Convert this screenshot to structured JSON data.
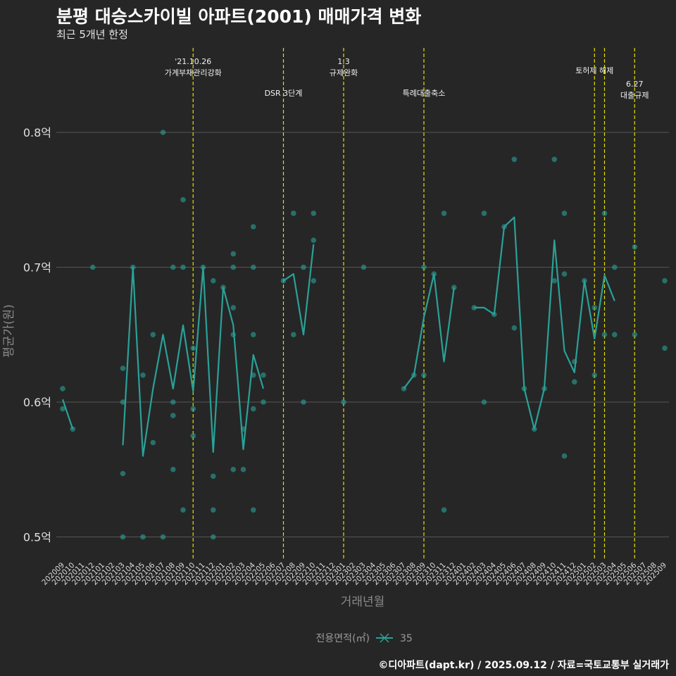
{
  "header": {
    "title": "분평 대승스카이빌 아파트(2001) 매매가격 변화",
    "subtitle": "최근 5개년 한정"
  },
  "caption": "©디아파트(dapt.kr) / 2025.09.12 / 자료=국토교통부 실거래가",
  "colors": {
    "series": "#2aa198",
    "grid": "#555555",
    "event_line": "#e0e000",
    "text": "#dddddd",
    "background": "#262626"
  },
  "chart_data": {
    "type": "line",
    "title": "분평 대승스카이빌 아파트(2001) 매매가격 변화",
    "xlabel": "거래년월",
    "ylabel": "평균가(원)",
    "ylim": [
      0.485,
      0.875
    ],
    "y_ticks": [
      0.5,
      0.6,
      0.7,
      0.8
    ],
    "y_tick_labels": [
      "0.5억",
      "0.6억",
      "0.7억",
      "0.8억"
    ],
    "categories": [
      "202009",
      "202010",
      "202011",
      "202012",
      "202101",
      "202102",
      "202103",
      "202104",
      "202105",
      "202106",
      "202107",
      "202108",
      "202109",
      "202110",
      "202111",
      "202112",
      "202201",
      "202202",
      "202203",
      "202204",
      "202205",
      "202206",
      "202207",
      "202208",
      "202209",
      "202210",
      "202211",
      "202212",
      "202301",
      "202302",
      "202303",
      "202304",
      "202305",
      "202306",
      "202307",
      "202308",
      "202309",
      "202310",
      "202311",
      "202312",
      "202401",
      "202402",
      "202403",
      "202404",
      "202405",
      "202406",
      "202407",
      "202408",
      "202409",
      "202410",
      "202411",
      "202412",
      "202501",
      "202502",
      "202503",
      "202504",
      "202505",
      "202506",
      "202507",
      "202508",
      "202509"
    ],
    "legend": {
      "title": "전용면적(㎡)",
      "label": "35"
    },
    "series": [
      {
        "name": "35",
        "line_segments": [
          [
            [
              "202009",
              0.602
            ],
            [
              "202010",
              0.58
            ]
          ],
          [
            [
              "202103",
              0.568
            ],
            [
              "202104",
              0.7
            ],
            [
              "202105",
              0.56
            ],
            [
              "202106",
              0.61
            ],
            [
              "202107",
              0.65
            ],
            [
              "202108",
              0.61
            ],
            [
              "202109",
              0.657
            ],
            [
              "202110",
              0.608
            ],
            [
              "202111",
              0.7
            ],
            [
              "202112",
              0.563
            ],
            [
              "202201",
              0.685
            ],
            [
              "202202",
              0.657
            ],
            [
              "202203",
              0.565
            ],
            [
              "202204",
              0.635
            ],
            [
              "202205",
              0.61
            ]
          ],
          [
            [
              "202207",
              0.69
            ],
            [
              "202208",
              0.695
            ],
            [
              "202209",
              0.65
            ],
            [
              "202210",
              0.717
            ]
          ],
          [
            [
              "202307",
              0.61
            ],
            [
              "202308",
              0.62
            ],
            [
              "202309",
              0.663
            ],
            [
              "202310",
              0.695
            ],
            [
              "202311",
              0.63
            ],
            [
              "202312",
              0.685
            ]
          ],
          [
            [
              "202402",
              0.67
            ],
            [
              "202403",
              0.67
            ],
            [
              "202404",
              0.665
            ],
            [
              "202405",
              0.73
            ],
            [
              "202406",
              0.737
            ],
            [
              "202407",
              0.61
            ],
            [
              "202408",
              0.58
            ],
            [
              "202409",
              0.61
            ],
            [
              "202410",
              0.72
            ],
            [
              "202411",
              0.638
            ],
            [
              "202412",
              0.622
            ],
            [
              "202501",
              0.69
            ],
            [
              "202502",
              0.647
            ],
            [
              "202503",
              0.694
            ],
            [
              "202504",
              0.675
            ]
          ]
        ],
        "points": [
          [
            "202009",
            0.61
          ],
          [
            "202009",
            0.595
          ],
          [
            "202010",
            0.58
          ],
          [
            "202012",
            0.7
          ],
          [
            "202103",
            0.625
          ],
          [
            "202103",
            0.6
          ],
          [
            "202103",
            0.547
          ],
          [
            "202103",
            0.5
          ],
          [
            "202104",
            0.7
          ],
          [
            "202105",
            0.62
          ],
          [
            "202105",
            0.5
          ],
          [
            "202106",
            0.65
          ],
          [
            "202106",
            0.57
          ],
          [
            "202107",
            0.8
          ],
          [
            "202107",
            0.5
          ],
          [
            "202108",
            0.7
          ],
          [
            "202108",
            0.6
          ],
          [
            "202108",
            0.59
          ],
          [
            "202108",
            0.55
          ],
          [
            "202109",
            0.75
          ],
          [
            "202109",
            0.7
          ],
          [
            "202109",
            0.52
          ],
          [
            "202110",
            0.64
          ],
          [
            "202110",
            0.595
          ],
          [
            "202110",
            0.575
          ],
          [
            "202111",
            0.7
          ],
          [
            "202112",
            0.69
          ],
          [
            "202112",
            0.545
          ],
          [
            "202112",
            0.52
          ],
          [
            "202112",
            0.5
          ],
          [
            "202201",
            0.685
          ],
          [
            "202202",
            0.71
          ],
          [
            "202202",
            0.7
          ],
          [
            "202202",
            0.67
          ],
          [
            "202202",
            0.65
          ],
          [
            "202202",
            0.55
          ],
          [
            "202203",
            0.58
          ],
          [
            "202203",
            0.55
          ],
          [
            "202204",
            0.73
          ],
          [
            "202204",
            0.7
          ],
          [
            "202204",
            0.65
          ],
          [
            "202204",
            0.62
          ],
          [
            "202204",
            0.595
          ],
          [
            "202204",
            0.52
          ],
          [
            "202205",
            0.62
          ],
          [
            "202205",
            0.6
          ],
          [
            "202207",
            0.69
          ],
          [
            "202208",
            0.74
          ],
          [
            "202208",
            0.65
          ],
          [
            "202209",
            0.7
          ],
          [
            "202209",
            0.6
          ],
          [
            "202210",
            0.74
          ],
          [
            "202210",
            0.72
          ],
          [
            "202210",
            0.69
          ],
          [
            "202301",
            0.6
          ],
          [
            "202303",
            0.7
          ],
          [
            "202307",
            0.61
          ],
          [
            "202308",
            0.62
          ],
          [
            "202309",
            0.7
          ],
          [
            "202309",
            0.62
          ],
          [
            "202310",
            0.695
          ],
          [
            "202311",
            0.74
          ],
          [
            "202311",
            0.52
          ],
          [
            "202312",
            0.685
          ],
          [
            "202402",
            0.67
          ],
          [
            "202403",
            0.74
          ],
          [
            "202403",
            0.6
          ],
          [
            "202404",
            0.665
          ],
          [
            "202405",
            0.73
          ],
          [
            "202406",
            0.78
          ],
          [
            "202406",
            0.655
          ],
          [
            "202407",
            0.61
          ],
          [
            "202408",
            0.58
          ],
          [
            "202409",
            0.61
          ],
          [
            "202410",
            0.78
          ],
          [
            "202410",
            0.69
          ],
          [
            "202411",
            0.74
          ],
          [
            "202411",
            0.695
          ],
          [
            "202411",
            0.56
          ],
          [
            "202412",
            0.63
          ],
          [
            "202412",
            0.615
          ],
          [
            "202501",
            0.69
          ],
          [
            "202502",
            0.67
          ],
          [
            "202502",
            0.62
          ],
          [
            "202503",
            0.74
          ],
          [
            "202503",
            0.65
          ],
          [
            "202504",
            0.7
          ],
          [
            "202504",
            0.65
          ],
          [
            "202506",
            0.715
          ],
          [
            "202506",
            0.65
          ],
          [
            "202509",
            0.69
          ],
          [
            "202509",
            0.64
          ]
        ]
      }
    ],
    "events": [
      {
        "month": "202110",
        "label": [
          "'21.10.26",
          "가계부채관리강화"
        ],
        "level": "high"
      },
      {
        "month": "202207",
        "label": [
          "DSR 3단계"
        ],
        "level": "low"
      },
      {
        "month": "202301",
        "label": [
          "1.3",
          "규제완화"
        ],
        "level": "high"
      },
      {
        "month": "202309",
        "label": [
          "특례대출축소"
        ],
        "level": "low"
      },
      {
        "month": "202502",
        "label": [
          "토허제 해제"
        ],
        "level": "mid"
      },
      {
        "month": "202503",
        "label": [],
        "level": "mid"
      },
      {
        "month": "202506",
        "label": [
          "6.27",
          "대출규제"
        ],
        "level": "lowest"
      }
    ]
  }
}
